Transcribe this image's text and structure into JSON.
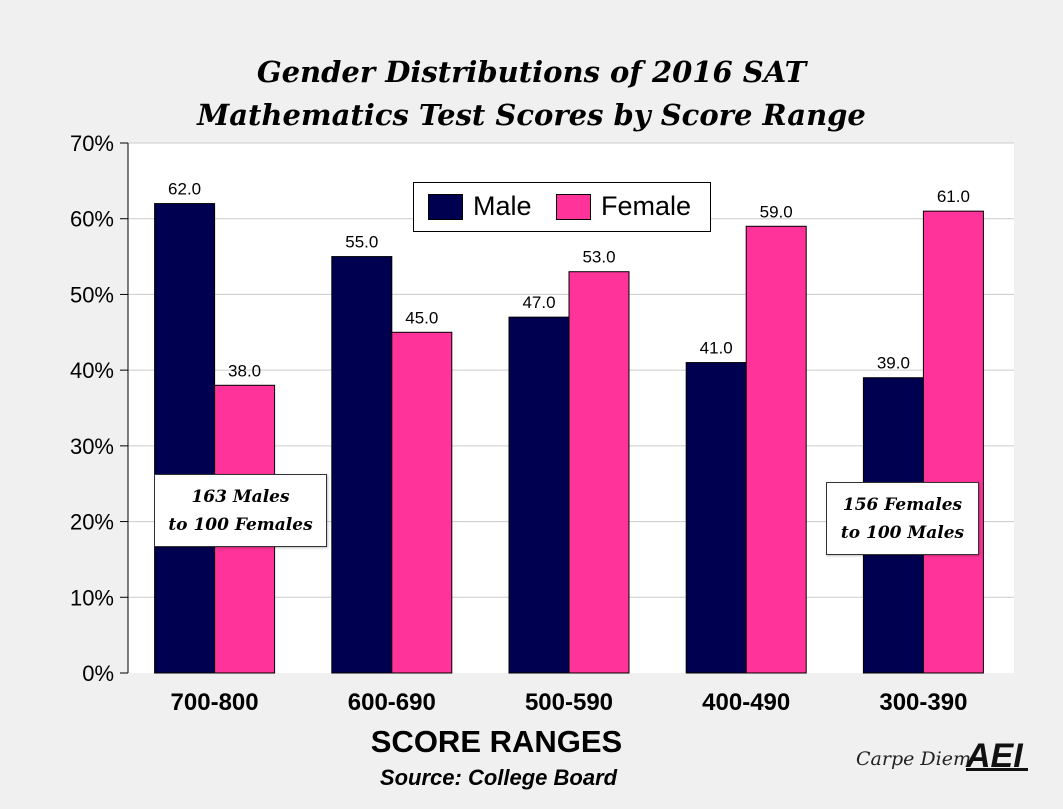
{
  "chart_data": {
    "type": "bar",
    "title_line_1": "Gender Distributions of 2016 SAT",
    "title_line_2": "Mathematics Test Scores by Score Range",
    "xlabel": "SCORE RANGES",
    "source": "Source: College Board",
    "categories": [
      "700-800",
      "600-690",
      "500-590",
      "400-490",
      "300-390"
    ],
    "series": [
      {
        "name": "Male",
        "color": "#000050",
        "values": [
          62.0,
          55.0,
          47.0,
          41.0,
          39.0
        ]
      },
      {
        "name": "Female",
        "color": "#ff3399",
        "values": [
          38.0,
          45.0,
          53.0,
          59.0,
          61.0
        ]
      }
    ],
    "value_labels": {
      "Male": [
        "62.0",
        "55.0",
        "47.0",
        "41.0",
        "39.0"
      ],
      "Female": [
        "38.0",
        "45.0",
        "53.0",
        "59.0",
        "61.0"
      ]
    },
    "ylim": [
      0,
      70
    ],
    "yticks": [
      0,
      10,
      20,
      30,
      40,
      50,
      60,
      70
    ],
    "ytick_labels": [
      "0%",
      "10%",
      "20%",
      "30%",
      "40%",
      "50%",
      "60%",
      "70%"
    ],
    "grid": true,
    "legend_position": "top-center",
    "annotations": [
      {
        "line1": "163 Males",
        "line2": "to 100 Females"
      },
      {
        "line1": "156 Females",
        "line2": "to 100 Males"
      }
    ]
  },
  "branding": {
    "tagline": "Carpe Diem",
    "logo_text": "AEI"
  }
}
